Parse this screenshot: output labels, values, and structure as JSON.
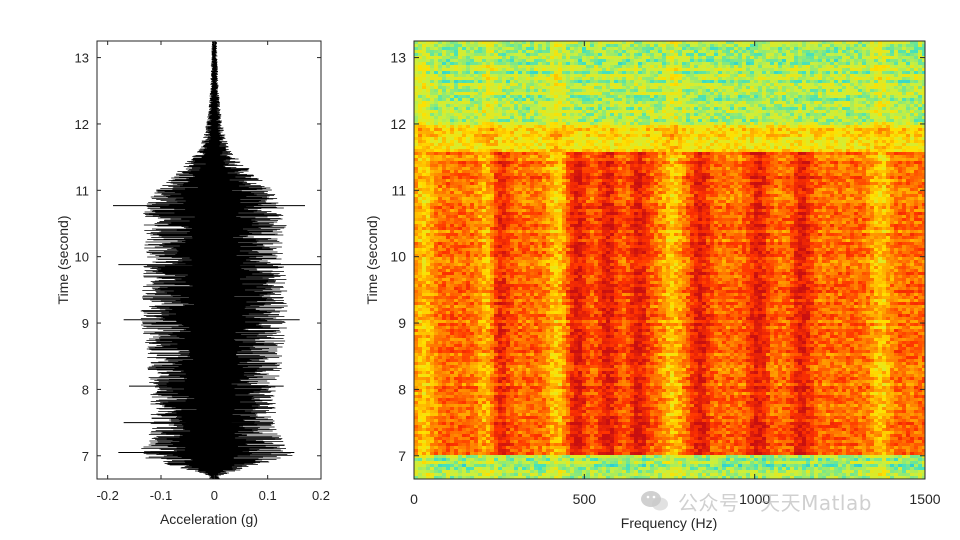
{
  "chart_data": [
    {
      "type": "line",
      "orientation": "vertical-time",
      "xlabel": "Acceleration (g)",
      "ylabel": "Time (second)",
      "xlim": [
        -0.22,
        0.2
      ],
      "ylim": [
        6.65,
        13.25
      ],
      "xticks": [
        -0.2,
        -0.1,
        0,
        0.1,
        0.2
      ],
      "xtick_labels": [
        "-0.2",
        "-0.1",
        "0",
        "0.1",
        "0.2"
      ],
      "yticks": [
        7,
        8,
        9,
        10,
        11,
        12,
        13
      ],
      "ytick_labels": [
        "7",
        "8",
        "9",
        "10",
        "11",
        "12",
        "13"
      ],
      "grid": false,
      "line_color": "#000000",
      "series": [
        {
          "description_of_values": "amplitude envelope of acceleration vs time",
          "time": [
            6.7,
            7.0,
            7.2,
            7.5,
            8.0,
            8.5,
            9.0,
            9.5,
            10.0,
            10.5,
            10.8,
            11.0,
            11.3,
            11.6,
            12.0,
            12.5,
            13.0,
            13.2
          ],
          "envelope_g": [
            0.01,
            0.15,
            0.13,
            0.12,
            0.12,
            0.13,
            0.14,
            0.14,
            0.13,
            0.14,
            0.13,
            0.11,
            0.07,
            0.03,
            0.015,
            0.008,
            0.006,
            0.005
          ]
        }
      ],
      "spikes": [
        {
          "time": 10.77,
          "min": -0.19,
          "max": 0.17
        },
        {
          "time": 9.88,
          "min": -0.18,
          "max": 0.2
        },
        {
          "time": 9.05,
          "min": -0.17,
          "max": 0.16
        },
        {
          "time": 8.05,
          "min": -0.16,
          "max": 0.13
        },
        {
          "time": 7.5,
          "min": -0.17,
          "max": 0.11
        },
        {
          "time": 7.05,
          "min": -0.18,
          "max": 0.15
        }
      ]
    },
    {
      "type": "heatmap",
      "xlabel": "Frequency (Hz)",
      "ylabel": "Time (second)",
      "xlim": [
        0,
        1500
      ],
      "ylim": [
        6.65,
        13.25
      ],
      "xticks": [
        0,
        500,
        1000,
        1500
      ],
      "xtick_labels": [
        "0",
        "500",
        "1000",
        "1500"
      ],
      "yticks": [
        7,
        8,
        9,
        10,
        11,
        12,
        13
      ],
      "ytick_labels": [
        "7",
        "8",
        "9",
        "10",
        "11",
        "12",
        "13"
      ],
      "colormap": "jet",
      "colormap_stops": [
        "#00a0ff",
        "#40e0c0",
        "#c8f040",
        "#ffe000",
        "#ff8800",
        "#ff3300",
        "#c81010"
      ],
      "levels_time": [
        6.65,
        7.0,
        7.05,
        11.6,
        12.0,
        13.25
      ],
      "background_levels": {
        "quiet_before_7s": 0.28,
        "active_7_to_11_6s": 0.72,
        "transition_11_6_to_12s": 0.5,
        "quiet_after_12s": 0.3
      },
      "ridges_hz": [
        250,
        480,
        570,
        660,
        840,
        1010,
        1140
      ],
      "bright_bands_hz": [
        30,
        220,
        420,
        760,
        1370
      ],
      "grid": false
    }
  ],
  "watermark": {
    "text": "公众号 · 天天Matlab"
  }
}
